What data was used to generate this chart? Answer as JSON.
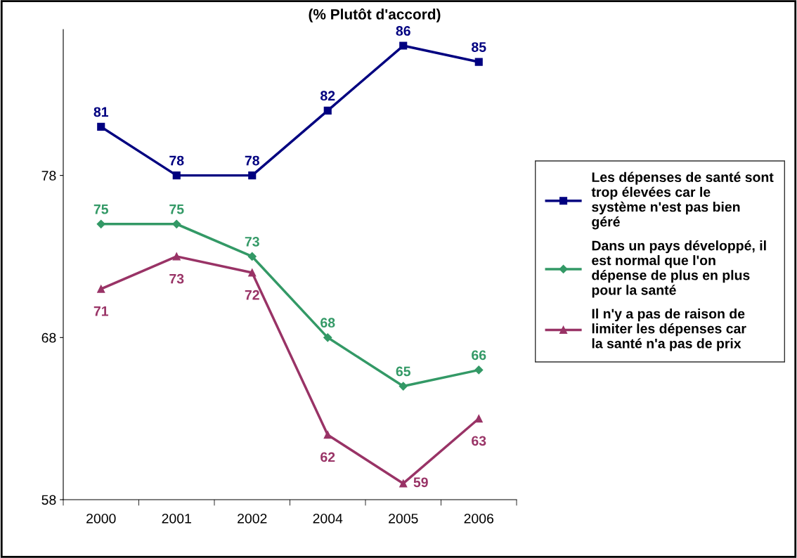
{
  "chart_data": {
    "type": "line",
    "title": "(% Plutôt d'accord)",
    "categories": [
      "2000",
      "2001",
      "2002",
      "2004",
      "2005",
      "2006"
    ],
    "series": [
      {
        "name": "Les dépenses de santé sont trop élevées car le système n'est pas bien géré",
        "color": "#000080",
        "marker": "square",
        "values": [
          81,
          78,
          78,
          82,
          86,
          85
        ]
      },
      {
        "name": "Dans un pays développé, il est normal que l'on dépense de plus en plus pour la santé",
        "color": "#339966",
        "marker": "diamond",
        "values": [
          75,
          75,
          73,
          68,
          65,
          66
        ]
      },
      {
        "name": "Il n'y a pas de raison de limiter les dépenses car la santé n'a pas de prix",
        "color": "#993366",
        "marker": "triangle",
        "values": [
          71,
          73,
          72,
          62,
          59,
          63
        ]
      }
    ],
    "ylim": [
      58,
      87
    ],
    "yticks": [
      58,
      68,
      78
    ],
    "grid": false,
    "legend": "right",
    "data_labels": true,
    "line_style": "solid"
  }
}
